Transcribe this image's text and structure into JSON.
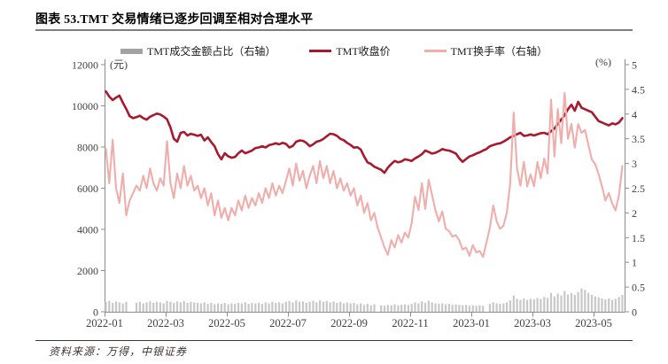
{
  "page": {
    "title": "图表 53.TMT 交易情绪已逐步回调至相对合理水平",
    "source": "资料来源：万得，中银证券"
  },
  "legend": [
    {
      "label": "TMT成交金额占比（右轴）",
      "type": "bar",
      "color": "#a3a3a3"
    },
    {
      "label": "TMT收盘价",
      "type": "line",
      "color": "#a8192e"
    },
    {
      "label": "TMT换手率（右轴）",
      "type": "line",
      "color": "#efaeab"
    }
  ],
  "chart_data": {
    "type": "combo",
    "title": "图表 53.TMT 交易情绪已逐步回调至相对合理水平",
    "x_axis": {
      "ticks": [
        "2022-01",
        "2022-03",
        "2022-05",
        "2022-07",
        "2022-09",
        "2022-11",
        "2023-01",
        "2023-03",
        "2023-05"
      ]
    },
    "left_axis": {
      "unit": "(元)",
      "min": 0,
      "max": 12000,
      "ticks": [
        "12000",
        "10000",
        "8000",
        "6000",
        "4000",
        "2000",
        "0"
      ]
    },
    "right_axis": {
      "unit": "(%)",
      "min": 0,
      "max": 5,
      "ticks": [
        "5",
        "4.5",
        "4",
        "3.5",
        "3",
        "2.5",
        "2",
        "1.5",
        "1",
        "0.5",
        "0"
      ]
    },
    "grid": false,
    "legend_position": "top",
    "series": [
      {
        "name": "TMT成交金额占比（右轴）",
        "type": "bar",
        "axis": "right",
        "color": "#c8c8c8",
        "values": [
          0.2,
          0.22,
          0.18,
          0.21,
          0.19,
          0.17,
          0.2,
          0,
          0,
          0.18,
          0.2,
          0.17,
          0.19,
          0.21,
          0.18,
          0.2,
          0.19,
          0.17,
          0.22,
          0.2,
          0.18,
          0.21,
          0.19,
          0.22,
          0.18,
          0.2,
          0.19,
          0.18,
          0.17,
          0.19,
          0.16,
          0.18,
          0.15,
          0.17,
          0.16,
          0.18,
          0.15,
          0.17,
          0.16,
          0.18,
          0.17,
          0.19,
          0.16,
          0.18,
          0.17,
          0.18,
          0.16,
          0.19,
          0.17,
          0.2,
          0.18,
          0.19,
          0.17,
          0.2,
          0.22,
          0.19,
          0.23,
          0.2,
          0.21,
          0.18,
          0.2,
          0.22,
          0.19,
          0.23,
          0.2,
          0.22,
          0.19,
          0.21,
          0.18,
          0.2,
          0.17,
          0.19,
          0.17,
          0.18,
          0.15,
          0.17,
          0.14,
          0.16,
          0.13,
          0.15,
          0,
          0.13,
          0.12,
          0.14,
          0.13,
          0.15,
          0.13,
          0.14,
          0.15,
          0.14,
          0.16,
          0.19,
          0.17,
          0.21,
          0.18,
          0.22,
          0.19,
          0.17,
          0.16,
          0.17,
          0.15,
          0.16,
          0.14,
          0.15,
          0.14,
          0.13,
          0.14,
          0.12,
          0.13,
          0.12,
          0.13,
          0.12,
          0,
          0.16,
          0.19,
          0.17,
          0.16,
          0.17,
          0.19,
          0.23,
          0.33,
          0.26,
          0.24,
          0.27,
          0.24,
          0.26,
          0.25,
          0.28,
          0.26,
          0.3,
          0.28,
          0.38,
          0.31,
          0.37,
          0.33,
          0.42,
          0.35,
          0.38,
          0.34,
          0.4,
          0.47,
          0.44,
          0.38,
          0.34,
          0.31,
          0.29,
          0.27,
          0.25,
          0.27,
          0.24,
          0.26,
          0.3,
          0.34
        ]
      },
      {
        "name": "TMT收盘价",
        "type": "line",
        "axis": "left",
        "color": "#a8192e",
        "values": [
          10700,
          10450,
          10280,
          10400,
          10500,
          10150,
          9850,
          9500,
          9400,
          9450,
          9520,
          9400,
          9330,
          9470,
          9550,
          9620,
          9580,
          9480,
          9350,
          8950,
          8400,
          8260,
          8690,
          8730,
          8560,
          8640,
          8600,
          8540,
          8600,
          8320,
          8470,
          8240,
          8040,
          7650,
          7400,
          7700,
          7550,
          7480,
          7520,
          7700,
          7830,
          7700,
          7760,
          7830,
          7950,
          7980,
          8040,
          7980,
          8090,
          8130,
          8180,
          8130,
          8200,
          8150,
          7980,
          8050,
          8260,
          8320,
          8300,
          8200,
          8040,
          8130,
          8260,
          8300,
          8390,
          8520,
          8645,
          8620,
          8540,
          8400,
          8330,
          8200,
          8100,
          7970,
          7990,
          7880,
          7540,
          7255,
          7180,
          7040,
          6970,
          6895,
          6750,
          7000,
          7180,
          7325,
          7255,
          7300,
          7400,
          7370,
          7325,
          7450,
          7540,
          7650,
          7830,
          7760,
          7680,
          7720,
          7800,
          7900,
          7850,
          7830,
          7760,
          7680,
          7450,
          7280,
          7420,
          7540,
          7600,
          7680,
          7740,
          7830,
          7900,
          8040,
          8100,
          8150,
          8180,
          8260,
          8360,
          8470,
          8540,
          8620,
          8690,
          8540,
          8560,
          8610,
          8560,
          8620,
          8670,
          8690,
          8620,
          8760,
          8900,
          9120,
          9330,
          9550,
          9835,
          10050,
          9760,
          10195,
          9905,
          9835,
          9760,
          9690,
          9475,
          9260,
          9190,
          9120,
          9050,
          9150,
          9100,
          9190,
          9400
        ]
      },
      {
        "name": "TMT换手率（右轴）",
        "type": "line",
        "axis": "right",
        "color": "#efaeab",
        "values": [
          3.3,
          2.6,
          3.48,
          2.5,
          2.2,
          2.8,
          1.95,
          2.25,
          2.4,
          2.55,
          2.45,
          2.75,
          2.5,
          2.9,
          2.6,
          2.45,
          2.7,
          2.55,
          3.45,
          2.6,
          2.3,
          2.8,
          2.5,
          2.95,
          2.55,
          2.75,
          2.45,
          2.55,
          2.3,
          2.5,
          2.15,
          2.4,
          1.95,
          2.25,
          1.9,
          2.1,
          1.85,
          2.1,
          1.95,
          2.25,
          2.05,
          2.35,
          2.1,
          2.3,
          2.15,
          2.4,
          2.2,
          2.5,
          2.3,
          2.6,
          2.35,
          2.55,
          2.4,
          2.65,
          2.9,
          2.55,
          3.0,
          2.65,
          2.85,
          2.5,
          2.75,
          2.95,
          2.6,
          3.05,
          2.7,
          2.95,
          2.6,
          2.85,
          2.5,
          2.7,
          2.45,
          2.6,
          2.35,
          2.5,
          2.15,
          2.35,
          2.0,
          2.2,
          1.85,
          2.0,
          1.7,
          1.5,
          1.3,
          1.15,
          1.45,
          1.3,
          1.55,
          1.4,
          1.6,
          1.5,
          1.8,
          2.33,
          2.06,
          2.6,
          2.08,
          2.67,
          2.36,
          2.06,
          1.83,
          2.03,
          1.68,
          1.63,
          1.52,
          1.55,
          1.44,
          1.26,
          1.3,
          1.13,
          1.35,
          1.2,
          1.23,
          1.11,
          1.4,
          1.7,
          2.15,
          1.83,
          1.68,
          1.74,
          2.01,
          2.6,
          4.03,
          2.9,
          2.55,
          3.03,
          2.54,
          2.78,
          2.54,
          3.03,
          2.7,
          3.1,
          2.8,
          4.29,
          3.14,
          4.1,
          3.41,
          4.43,
          3.5,
          3.8,
          3.32,
          3.8,
          3.62,
          3.68,
          3.38,
          3.08,
          2.99,
          2.78,
          2.54,
          2.25,
          2.4,
          2.19,
          2.05,
          2.37,
          2.95
        ]
      }
    ]
  }
}
